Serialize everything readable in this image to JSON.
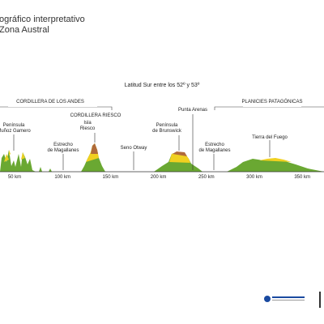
{
  "header": {
    "title": "ográfico interpretativo",
    "subtitle": "Zona Austral"
  },
  "profile": {
    "caption": "Latitud Sur entre los 52º y 53º",
    "regions": [
      "CORDILLERA DE LOS ANDES",
      "PLANICIES PATAGÓNICAS",
      "CORDILLERA RIESCO"
    ],
    "places": [
      {
        "lines": [
          "Península",
          "Muñoz Gamero"
        ]
      },
      {
        "lines": [
          "Estrecho",
          "de Magallanes"
        ]
      },
      {
        "lines": [
          "Isla",
          "Riesco"
        ]
      },
      {
        "lines": [
          "Seno Otway"
        ]
      },
      {
        "lines": [
          "Península",
          "de Brunswick"
        ]
      },
      {
        "lines": [
          "Punta Arenas"
        ]
      },
      {
        "lines": [
          "Estrecho",
          "de Magallanes"
        ]
      },
      {
        "lines": [
          "Tierra del Fuego"
        ]
      }
    ],
    "distances": [
      "50 km",
      "100 km",
      "150 km",
      "200 km",
      "250 km",
      "300 km",
      "350 km"
    ]
  }
}
